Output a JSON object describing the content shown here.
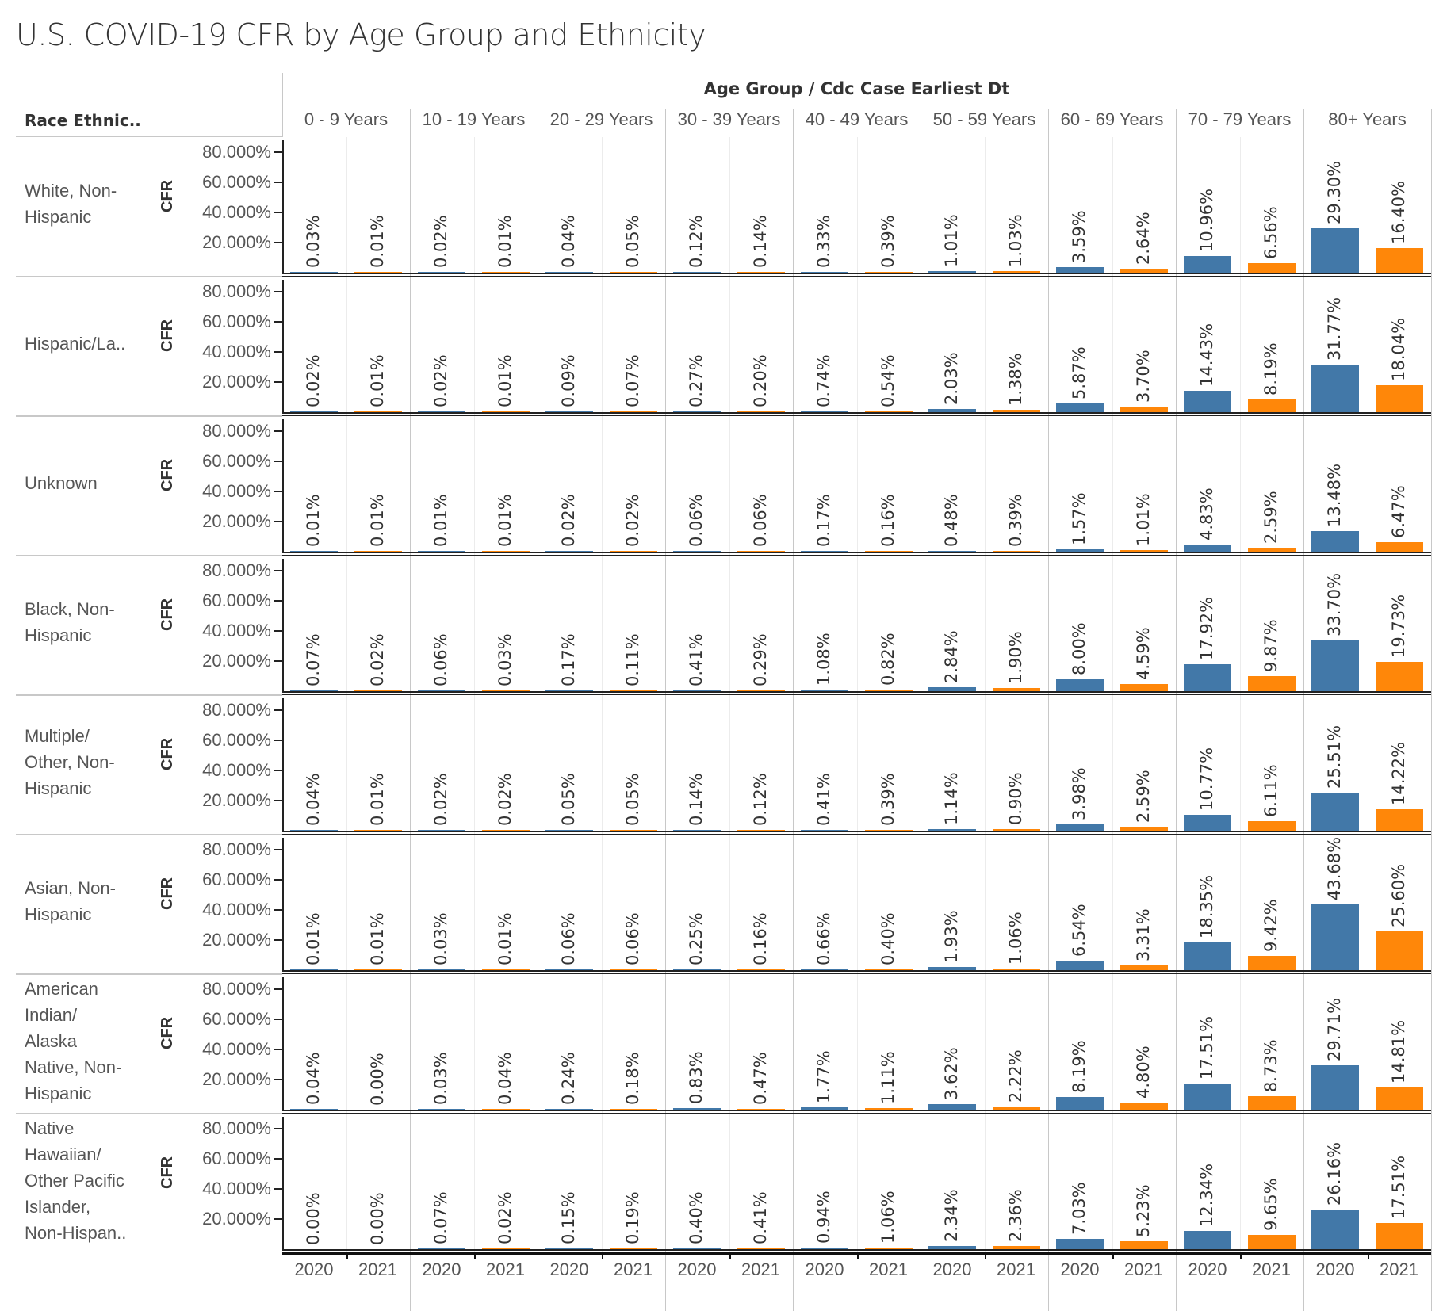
{
  "chart_data": {
    "type": "bar",
    "title": "U.S. COVID-19 CFR by Age Group and Ethnicity",
    "column_header": "Age Group  /  Cdc Case Earliest Dt",
    "row_header": "Race Ethnic..",
    "ylabel": "CFR",
    "ylim": [
      0,
      80
    ],
    "yticks": [
      "80.000%",
      "60.000%",
      "40.000%",
      "20.000%"
    ],
    "ytick_values": [
      80,
      60,
      40,
      20
    ],
    "age_groups": [
      "0 - 9 Years",
      "10 - 19 Years",
      "20 - 29 Years",
      "30 - 39 Years",
      "40 - 49 Years",
      "50 - 59 Years",
      "60 - 69 Years",
      "70 - 79 Years",
      "80+ Years"
    ],
    "years": [
      "2020",
      "2021"
    ],
    "colors": {
      "2020": "#4278a8",
      "2021": "#ff8709"
    },
    "rows": [
      {
        "label": "White, Non-\nHispanic",
        "values": [
          [
            0.03,
            0.01
          ],
          [
            0.02,
            0.01
          ],
          [
            0.04,
            0.05
          ],
          [
            0.12,
            0.14
          ],
          [
            0.33,
            0.39
          ],
          [
            1.01,
            1.03
          ],
          [
            3.59,
            2.64
          ],
          [
            10.96,
            6.56
          ],
          [
            29.3,
            16.4
          ]
        ]
      },
      {
        "label": "Hispanic/La..",
        "values": [
          [
            0.02,
            0.01
          ],
          [
            0.02,
            0.01
          ],
          [
            0.09,
            0.07
          ],
          [
            0.27,
            0.2
          ],
          [
            0.74,
            0.54
          ],
          [
            2.03,
            1.38
          ],
          [
            5.87,
            3.7
          ],
          [
            14.43,
            8.19
          ],
          [
            31.77,
            18.04
          ]
        ]
      },
      {
        "label": "Unknown",
        "values": [
          [
            0.01,
            0.01
          ],
          [
            0.01,
            0.01
          ],
          [
            0.02,
            0.02
          ],
          [
            0.06,
            0.06
          ],
          [
            0.17,
            0.16
          ],
          [
            0.48,
            0.39
          ],
          [
            1.57,
            1.01
          ],
          [
            4.83,
            2.59
          ],
          [
            13.48,
            6.47
          ]
        ]
      },
      {
        "label": "Black, Non-\nHispanic",
        "values": [
          [
            0.07,
            0.02
          ],
          [
            0.06,
            0.03
          ],
          [
            0.17,
            0.11
          ],
          [
            0.41,
            0.29
          ],
          [
            1.08,
            0.82
          ],
          [
            2.84,
            1.9
          ],
          [
            8.0,
            4.59
          ],
          [
            17.92,
            9.87
          ],
          [
            33.7,
            19.73
          ]
        ]
      },
      {
        "label": "Multiple/\nOther, Non-\nHispanic",
        "values": [
          [
            0.04,
            0.01
          ],
          [
            0.02,
            0.02
          ],
          [
            0.05,
            0.05
          ],
          [
            0.14,
            0.12
          ],
          [
            0.41,
            0.39
          ],
          [
            1.14,
            0.9
          ],
          [
            3.98,
            2.59
          ],
          [
            10.77,
            6.11
          ],
          [
            25.51,
            14.22
          ]
        ]
      },
      {
        "label": "Asian, Non-\nHispanic",
        "values": [
          [
            0.01,
            0.01
          ],
          [
            0.03,
            0.01
          ],
          [
            0.06,
            0.06
          ],
          [
            0.25,
            0.16
          ],
          [
            0.66,
            0.4
          ],
          [
            1.93,
            1.06
          ],
          [
            6.54,
            3.31
          ],
          [
            18.35,
            9.42
          ],
          [
            43.68,
            25.6
          ]
        ]
      },
      {
        "label": "American\nIndian/\nAlaska\nNative, Non-\nHispanic",
        "values": [
          [
            0.04,
            0.0
          ],
          [
            0.03,
            0.04
          ],
          [
            0.24,
            0.18
          ],
          [
            0.83,
            0.47
          ],
          [
            1.77,
            1.11
          ],
          [
            3.62,
            2.22
          ],
          [
            8.19,
            4.8
          ],
          [
            17.51,
            8.73
          ],
          [
            29.71,
            14.81
          ]
        ]
      },
      {
        "label": "Native\nHawaiian/\nOther Pacific\nIslander,\nNon-Hispan..",
        "values": [
          [
            0.0,
            0.0
          ],
          [
            0.07,
            0.02
          ],
          [
            0.15,
            0.19
          ],
          [
            0.4,
            0.41
          ],
          [
            0.94,
            1.06
          ],
          [
            2.34,
            2.36
          ],
          [
            7.03,
            5.23
          ],
          [
            12.34,
            9.65
          ],
          [
            26.16,
            17.51
          ]
        ]
      }
    ]
  }
}
